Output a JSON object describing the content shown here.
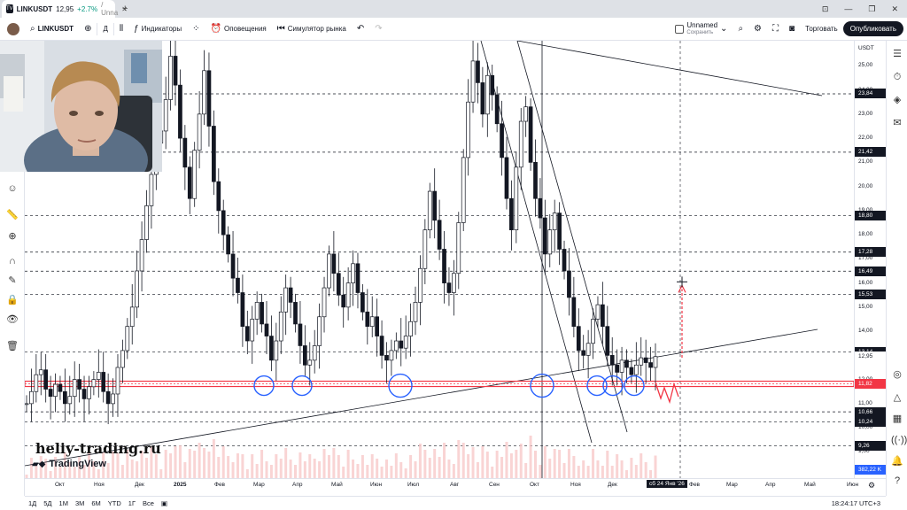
{
  "browser": {
    "tab_symbol": "LINKUSDT",
    "tab_price": "12,95",
    "tab_change": "+2.7%",
    "tab_rest": "/ Unna",
    "new_tab": "+"
  },
  "header": {
    "symbol": "LINKUSDT",
    "interval": "Д",
    "indicators": "Индикаторы",
    "alerts": "Оповещения",
    "replay": "Симулятор рынка",
    "layout_name": "Unnamed",
    "layout_status": "Сохранить",
    "trade": "Торговать",
    "publish": "Опубликовать"
  },
  "price_scale": {
    "currency": "USDT",
    "ticks": [
      "25,00",
      "24,00",
      "23,00",
      "22,00",
      "21,00",
      "20,00",
      "19,00",
      "18,00",
      "17,00",
      "16,00",
      "15,00",
      "14,00",
      "13,00",
      "12,00",
      "11,00",
      "10,00",
      "9,00"
    ],
    "labels": [
      {
        "value": "23,84",
        "kind": "dark"
      },
      {
        "value": "21,42",
        "kind": "dark"
      },
      {
        "value": "18,80",
        "kind": "dark"
      },
      {
        "value": "17,28",
        "kind": "dark"
      },
      {
        "value": "16,49",
        "kind": "dark"
      },
      {
        "value": "15,53",
        "kind": "dark"
      },
      {
        "value": "13,14",
        "kind": "dark"
      },
      {
        "value": "12,95",
        "kind": "plain"
      },
      {
        "value": "11,82",
        "kind": "red"
      },
      {
        "value": "10,66",
        "kind": "dark"
      },
      {
        "value": "10,24",
        "kind": "dark"
      },
      {
        "value": "9,26",
        "kind": "dark"
      },
      {
        "value": "382,22 K",
        "kind": "blue"
      }
    ]
  },
  "time_scale": {
    "ticks": [
      "Окт",
      "Ноя",
      "Дек",
      "2025",
      "Фев",
      "Мар",
      "Апр",
      "Май",
      "Июн",
      "Июл",
      "Авг",
      "Сен",
      "Окт",
      "Ноя",
      "Дек",
      "2026",
      "Фев",
      "Мар",
      "Апр",
      "Май",
      "Июн"
    ],
    "cursor": "сб 24 Янв '26"
  },
  "bottom": {
    "ranges": [
      "1Д",
      "5Д",
      "1М",
      "3М",
      "6М",
      "YTD",
      "1Г",
      "Все"
    ],
    "clock": "18:24:17 UTC+3"
  },
  "watermark": {
    "site": "heliy-trading.ru",
    "brand": "TradingView"
  },
  "colors": {
    "up": "#089981",
    "candle": "#131722",
    "support": "#f23645",
    "circle": "#2962ff"
  },
  "chart_data": {
    "type": "candlestick",
    "symbol": "LINKUSDT",
    "support_level": 11.82,
    "horizontal_levels": [
      23.84,
      21.42,
      18.8,
      17.28,
      16.49,
      15.53,
      13.14,
      10.66,
      10.24,
      9.26
    ],
    "ylim": [
      8.5,
      25.6
    ],
    "target_level": 15.9,
    "closes": [
      11.0,
      11.5,
      12.2,
      12.4,
      11.6,
      11.3,
      11.8,
      11.5,
      11.0,
      11.3,
      12.0,
      11.6,
      11.2,
      11.7,
      12.0,
      12.3,
      11.5,
      11.0,
      11.4,
      12.5,
      13.2,
      14.2,
      15.0,
      16.5,
      17.8,
      19.2,
      20.5,
      21.8,
      22.3,
      23.6,
      25.4,
      24.2,
      22.0,
      20.8,
      19.5,
      21.5,
      23.0,
      24.8,
      22.5,
      20.2,
      19.0,
      18.0,
      17.2,
      16.2,
      15.6,
      14.2,
      13.6,
      14.5,
      15.2,
      14.3,
      13.8,
      12.8,
      13.6,
      14.8,
      15.8,
      15.2,
      14.3,
      13.4,
      12.6,
      12.8,
      13.4,
      14.6,
      15.8,
      17.2,
      16.4,
      15.5,
      15.0,
      16.0,
      16.8,
      15.6,
      14.8,
      14.2,
      14.6,
      13.8,
      13.0,
      12.8,
      13.2,
      13.6,
      13.3,
      13.8,
      14.4,
      15.2,
      16.6,
      18.2,
      19.8,
      18.6,
      17.4,
      16.0,
      15.6,
      16.4,
      18.5,
      21.2,
      23.5,
      25.2,
      24.3,
      23.0,
      24.6,
      23.8,
      22.6,
      21.2,
      19.5,
      18.2,
      20.8,
      22.7,
      23.3,
      21.0,
      19.5,
      18.7,
      17.2,
      18.2,
      18.9,
      17.4,
      16.5,
      15.4,
      14.2,
      13.2,
      13.0,
      13.5,
      14.5,
      15.1,
      14.2,
      13.0,
      12.6,
      12.3,
      12.8,
      12.5,
      12.2,
      12.6,
      12.9,
      12.7,
      12.5,
      12.95
    ]
  }
}
